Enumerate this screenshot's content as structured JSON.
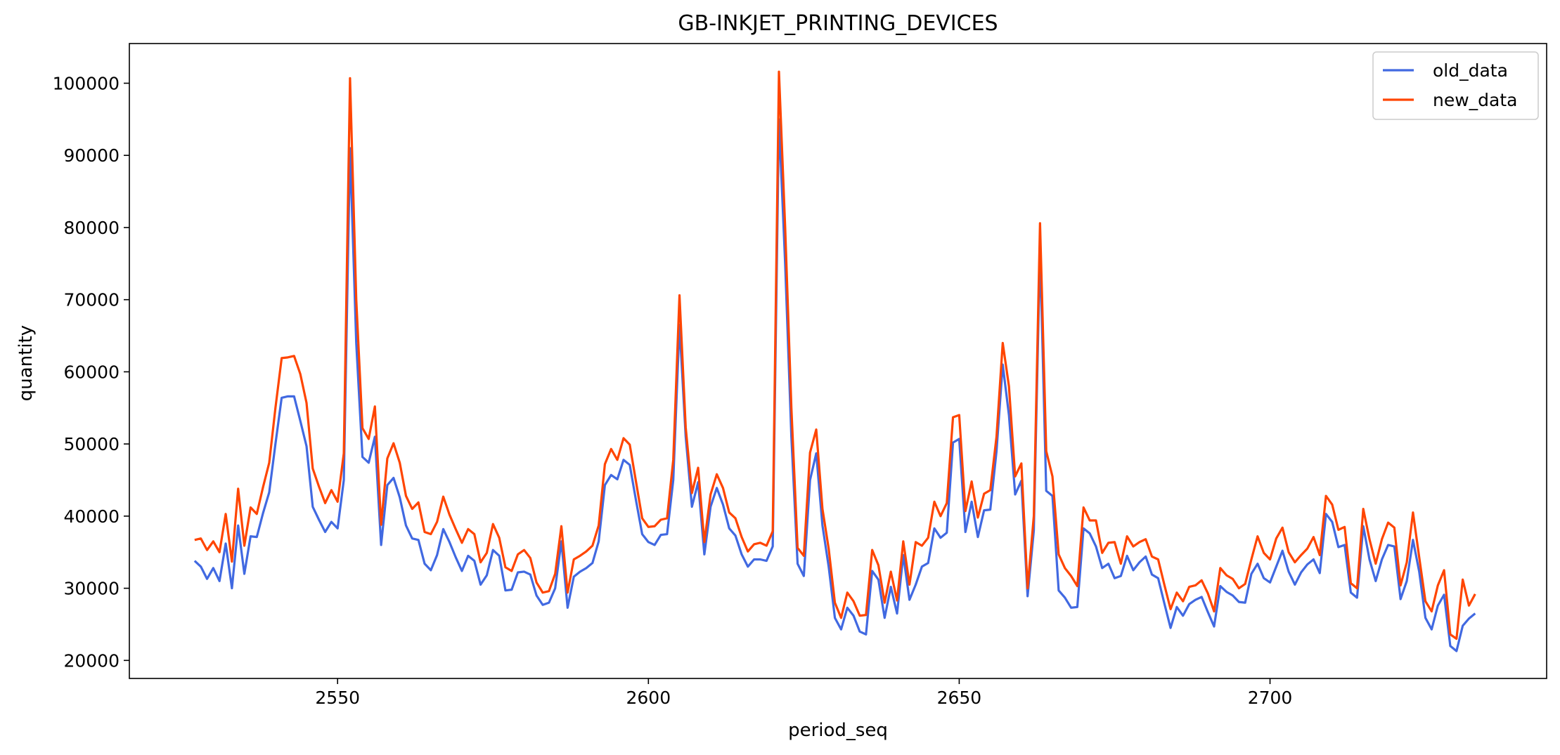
{
  "chart_data": {
    "type": "line",
    "title": "GB-INKJET_PRINTING_DEVICES",
    "xlabel": "period_seq",
    "ylabel": "quantity",
    "xlim": [
      2516.5,
      2744.5
    ],
    "ylim": [
      17500,
      105500
    ],
    "xticks": [
      2550,
      2600,
      2650,
      2700
    ],
    "yticks": [
      20000,
      30000,
      40000,
      50000,
      60000,
      70000,
      80000,
      90000,
      100000
    ],
    "grid": false,
    "legend_position": "top-right",
    "x_start": 2527,
    "x_step": 1,
    "series": [
      {
        "name": "old_data",
        "color": "#4169e1",
        "values": [
          33800,
          33000,
          31300,
          32800,
          31000,
          36200,
          30000,
          38700,
          32000,
          37200,
          37100,
          40400,
          43300,
          50000,
          56400,
          56600,
          56600,
          53200,
          49700,
          41300,
          39500,
          37800,
          39200,
          38300,
          45000,
          91000,
          64000,
          48200,
          47400,
          51000,
          36000,
          44300,
          45300,
          42600,
          38700,
          36900,
          36700,
          33400,
          32500,
          34600,
          38200,
          36400,
          34300,
          32400,
          34500,
          33800,
          30500,
          31800,
          35300,
          34500,
          29700,
          29800,
          32200,
          32300,
          31900,
          29000,
          27700,
          28000,
          30000,
          36500,
          27300,
          31600,
          32300,
          32800,
          33500,
          36500,
          44300,
          45700,
          45100,
          47800,
          47100,
          42200,
          37500,
          36400,
          36000,
          37400,
          37500,
          45000,
          66500,
          51000,
          41300,
          44700,
          34700,
          41300,
          43900,
          41600,
          38300,
          37300,
          34700,
          33000,
          34000,
          34000,
          33800,
          35800,
          95000,
          75000,
          51000,
          33400,
          31700,
          45000,
          48700,
          38700,
          33000,
          25900,
          24300,
          27300,
          26200,
          24000,
          23600,
          32400,
          31200,
          25900,
          30200,
          26500,
          34600,
          28400,
          30500,
          33000,
          33500,
          38300,
          37000,
          37700,
          50200,
          50700,
          37800,
          42000,
          37100,
          40800,
          40900,
          49000,
          61000,
          54000,
          43000,
          44900,
          28900,
          38000,
          77000,
          43500,
          42800,
          29700,
          28700,
          27300,
          27400,
          38300,
          37600,
          35800,
          32800,
          33400,
          31400,
          31700,
          34500,
          32500,
          33600,
          34400,
          31900,
          31400,
          27900,
          24500,
          27400,
          26200,
          27800,
          28400,
          28800,
          26700,
          24700,
          30300,
          29500,
          29000,
          28100,
          28000,
          32000,
          33400,
          31400,
          30800,
          33000,
          35200,
          32300,
          30500,
          32200,
          33300,
          34000,
          32100,
          40300,
          39200,
          35700,
          36000,
          29400,
          28700,
          38600,
          34000,
          31000,
          34000,
          36000,
          35800,
          28500,
          31000,
          36700,
          32300,
          25900,
          24300,
          27600,
          29100,
          22000,
          21300,
          24800,
          25800,
          26500
        ]
      },
      {
        "name": "new_data",
        "color": "#ff4500",
        "values": [
          36700,
          36900,
          35300,
          36500,
          35000,
          40300,
          33700,
          43800,
          35900,
          41200,
          40300,
          44000,
          47400,
          55000,
          61900,
          62000,
          62200,
          59700,
          55700,
          46600,
          44100,
          41800,
          43600,
          42000,
          48700,
          100700,
          70000,
          52200,
          50700,
          55200,
          38800,
          48000,
          50100,
          47400,
          42800,
          41000,
          41900,
          37800,
          37500,
          39200,
          42700,
          40200,
          38200,
          36300,
          38200,
          37500,
          33600,
          34900,
          38900,
          37000,
          32900,
          32400,
          34700,
          35300,
          34200,
          30800,
          29400,
          29600,
          32000,
          38600,
          29400,
          34000,
          34500,
          35100,
          35900,
          38700,
          47200,
          49300,
          47800,
          50800,
          49900,
          44800,
          39700,
          38500,
          38600,
          39500,
          39700,
          47800,
          70600,
          52300,
          43200,
          46700,
          36400,
          43000,
          45800,
          43900,
          40500,
          39700,
          37100,
          35100,
          36100,
          36300,
          35900,
          37900,
          101600,
          80000,
          55000,
          35600,
          34500,
          48800,
          52000,
          41000,
          35500,
          28000,
          25900,
          29400,
          28200,
          26200,
          26300,
          35300,
          33200,
          28000,
          32300,
          28300,
          36500,
          30500,
          36400,
          35900,
          37000,
          42000,
          40000,
          41800,
          53700,
          54000,
          40700,
          44800,
          39800,
          43100,
          43600,
          51000,
          64000,
          58000,
          45500,
          47300,
          30000,
          40000,
          80600,
          49000,
          45500,
          34700,
          32800,
          31700,
          30300,
          41200,
          39400,
          39400,
          34900,
          36300,
          36400,
          33400,
          37200,
          35800,
          36400,
          36800,
          34400,
          34000,
          30500,
          27100,
          29400,
          28200,
          30200,
          30400,
          31100,
          29300,
          26800,
          32800,
          31800,
          31300,
          30000,
          30600,
          34000,
          37200,
          34900,
          34000,
          36900,
          38400,
          35000,
          33600,
          34600,
          35500,
          37100,
          34600,
          42800,
          41600,
          38100,
          38500,
          30700,
          30000,
          41000,
          36800,
          33400,
          36800,
          39100,
          38400,
          30400,
          33600,
          40500,
          34300,
          28200,
          26800,
          30400,
          32500,
          23600,
          23000,
          31200,
          27600,
          29200
        ]
      }
    ]
  }
}
